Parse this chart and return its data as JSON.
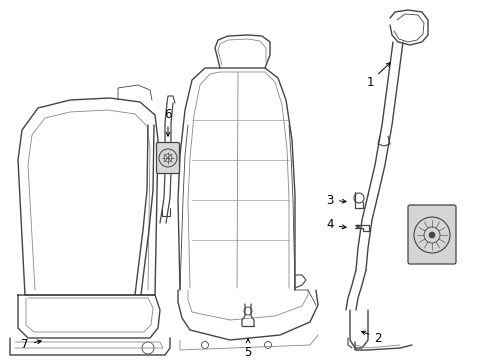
{
  "bg_color": "#ffffff",
  "line_color": "#444444",
  "line_color_light": "#888888",
  "label_fontsize": 8.5,
  "figsize": [
    4.9,
    3.6
  ],
  "dpi": 100
}
